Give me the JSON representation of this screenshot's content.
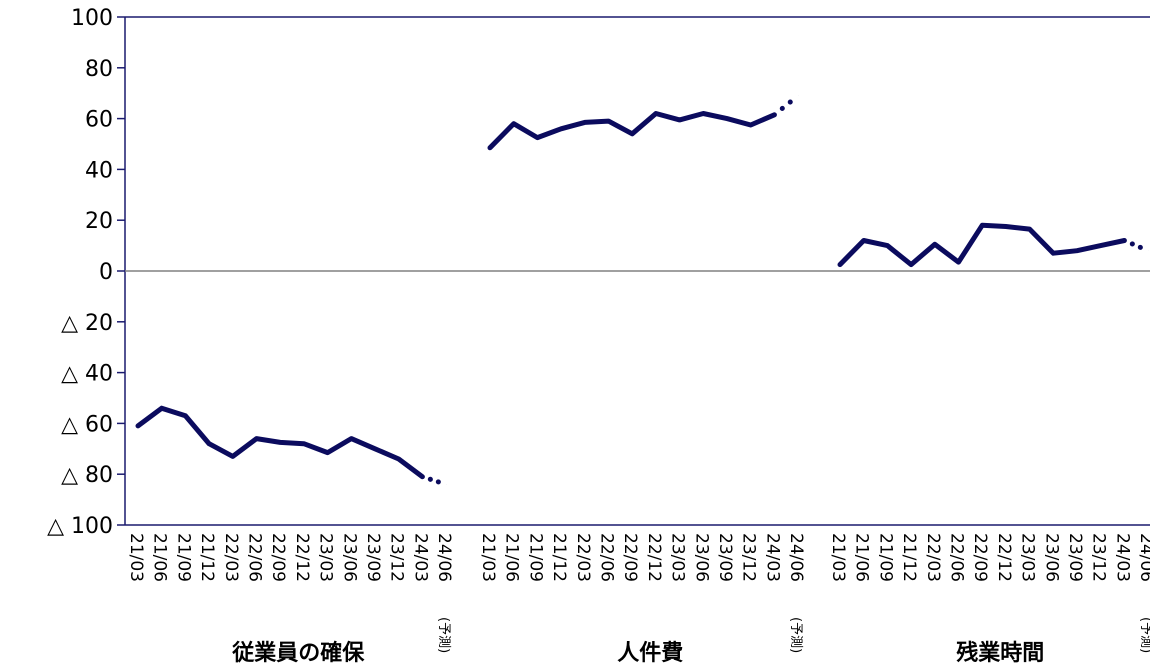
{
  "chart_data": {
    "type": "line",
    "ylim": [
      -100,
      100
    ],
    "ytick_values": [
      100,
      80,
      60,
      40,
      20,
      0,
      -20,
      -40,
      -60,
      -80,
      -100
    ],
    "ytick_labels": [
      "100",
      "80",
      "60",
      "40",
      "20",
      "0",
      "△ 20",
      "△ 40",
      "△ 60",
      "△ 80",
      "△ 100"
    ],
    "categories": [
      "21/03",
      "21/06",
      "21/09",
      "21/12",
      "22/03",
      "22/06",
      "22/09",
      "22/12",
      "23/03",
      "23/06",
      "23/09",
      "23/12",
      "24/03",
      "24/06"
    ],
    "forecast_note": "(予測)",
    "colors": {
      "line": "#0b0b5e",
      "frame": "#1a1a6e",
      "zero_line": "#808080"
    },
    "grid": false,
    "groups": [
      {
        "label": "従業員の確保",
        "values": [
          -61,
          -54,
          -57,
          -68,
          -73,
          -66,
          -67.5,
          -68,
          -71.5,
          -66,
          -70,
          -74,
          -81,
          -84
        ],
        "forecast_from_index": 12
      },
      {
        "label": "人件費",
        "values": [
          48.5,
          58,
          52.5,
          56,
          58.5,
          59,
          54,
          62,
          59.5,
          62,
          60,
          57.5,
          61.5,
          69
        ],
        "forecast_from_index": 12
      },
      {
        "label": "残業時間",
        "values": [
          2.5,
          12,
          10,
          2.5,
          10.5,
          3.5,
          18,
          17.5,
          16.5,
          7,
          8,
          10,
          12,
          8
        ],
        "forecast_from_index": 12
      }
    ]
  }
}
